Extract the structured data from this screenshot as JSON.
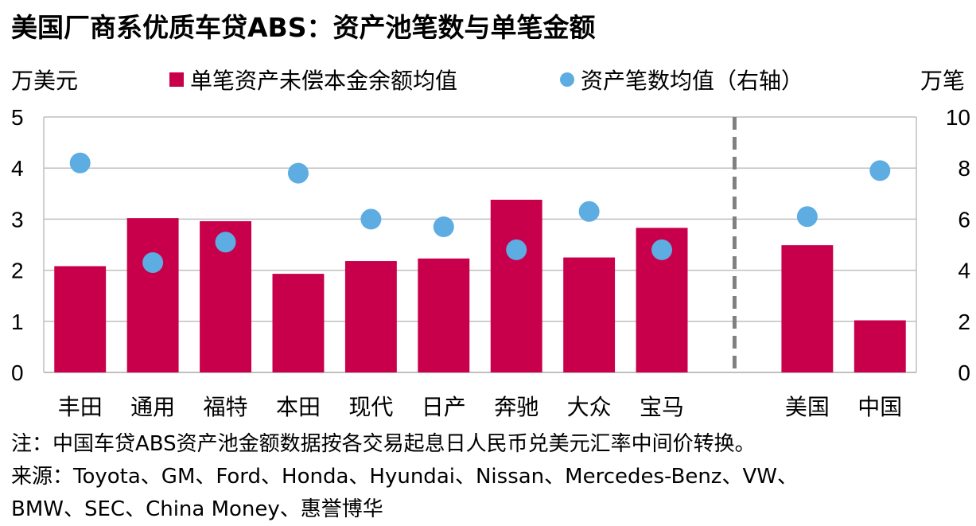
{
  "title": "美国厂商系优质车贷ABS：资产池笔数与单笔金额",
  "left_unit": "万美元",
  "right_unit": "万笔",
  "legend": {
    "bar": "单笔资产未偿本金余额均值",
    "dot": "资产笔数均值（右轴）"
  },
  "notes": [
    "注：中国车贷ABS资产池金额数据按各交易起息日人民币兑美元汇率中间价转换。",
    "来源：Toyota、GM、Ford、Honda、Hyundai、Nissan、Mercedes-Benz、VW、",
    "BMW、SEC、China Money、惠誉博华"
  ],
  "colors": {
    "bar": "#c8004b",
    "dot": "#5dade2",
    "grid": "#bfbfbf",
    "divider": "#808080"
  },
  "chart_data": {
    "type": "bar",
    "categories": [
      "丰田",
      "通用",
      "福特",
      "本田",
      "现代",
      "日产",
      "奔驰",
      "大众",
      "宝马",
      "",
      "美国",
      "中国"
    ],
    "series": [
      {
        "name": "单笔资产未偿本金余额均值",
        "type": "bar",
        "axis": "left",
        "values": [
          2.08,
          3.02,
          2.96,
          1.93,
          2.18,
          2.23,
          3.38,
          2.25,
          2.83,
          null,
          2.49,
          1.02
        ]
      },
      {
        "name": "资产笔数均值（右轴）",
        "type": "scatter",
        "axis": "right",
        "values": [
          8.2,
          4.3,
          5.1,
          7.8,
          6.0,
          5.7,
          4.8,
          6.3,
          4.8,
          null,
          6.1,
          7.9
        ]
      }
    ],
    "y_left": {
      "min": 0,
      "max": 5,
      "ticks": [
        "0",
        "1",
        "2",
        "3",
        "4",
        "5"
      ]
    },
    "y_right": {
      "min": 0,
      "max": 10,
      "ticks": [
        "0",
        "2",
        "4",
        "6",
        "8",
        "10"
      ]
    },
    "grid": true,
    "divider_after_category": "宝马",
    "legend_position": "top"
  }
}
